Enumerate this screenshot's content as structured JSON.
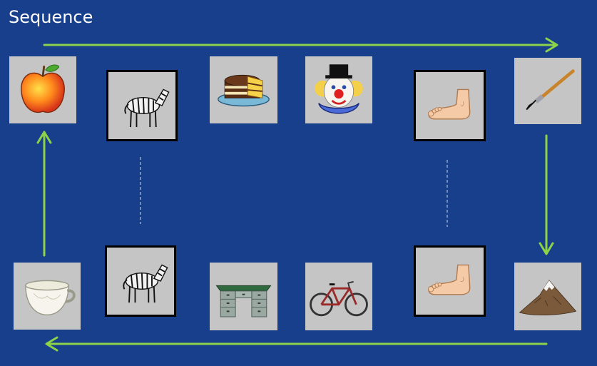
{
  "slide": {
    "title": "Sequence"
  },
  "colors": {
    "background": "#173f8c",
    "arrow": "#8ed24a",
    "tile": "#c5c5c5",
    "divider": "#d6dbe6"
  },
  "sequence": [
    {
      "position": 1,
      "row": "top",
      "item": "apple"
    },
    {
      "position": 2,
      "row": "top",
      "item": "zebra",
      "framed": true
    },
    {
      "position": 3,
      "row": "top",
      "item": "cake"
    },
    {
      "position": 4,
      "row": "top",
      "item": "clown"
    },
    {
      "position": 5,
      "row": "top",
      "item": "foot",
      "framed": true
    },
    {
      "position": 6,
      "row": "top",
      "item": "paintbrush"
    },
    {
      "position": 7,
      "row": "bottom",
      "item": "mountain"
    },
    {
      "position": 8,
      "row": "bottom",
      "item": "foot",
      "framed": true
    },
    {
      "position": 9,
      "row": "bottom",
      "item": "bicycle"
    },
    {
      "position": 10,
      "row": "bottom",
      "item": "desk"
    },
    {
      "position": 11,
      "row": "bottom",
      "item": "zebra",
      "framed": true
    },
    {
      "position": 12,
      "row": "bottom",
      "item": "teacup"
    }
  ],
  "flow": [
    "right",
    "down",
    "left",
    "up"
  ]
}
